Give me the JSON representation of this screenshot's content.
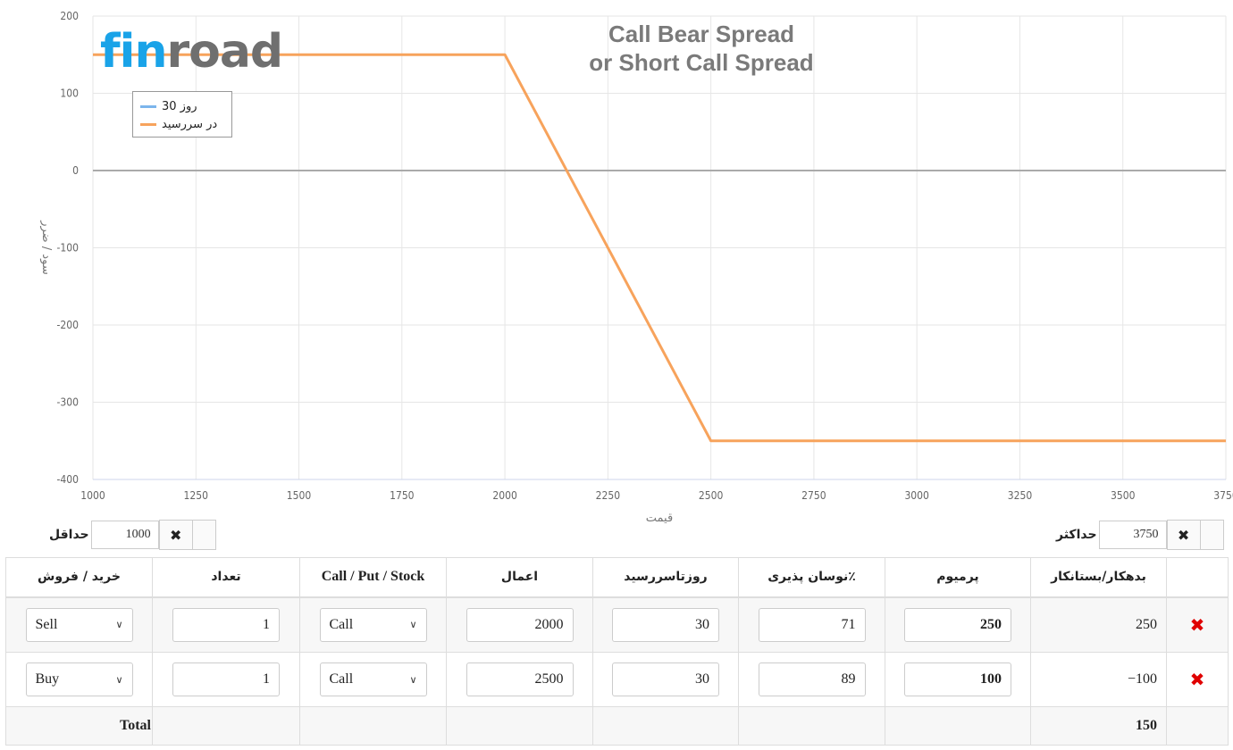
{
  "chart_data": {
    "type": "line",
    "title": "Call Bear Spread",
    "subtitle": "or Short Call Spread",
    "xlabel": "قیمت",
    "ylabel": "سود / ضرر",
    "xlim": [
      1000,
      3750
    ],
    "ylim": [
      -400,
      200
    ],
    "x_ticks": [
      "1000",
      "1250",
      "1500",
      "1750",
      "2000",
      "2250",
      "2500",
      "2750",
      "3000",
      "3250",
      "3500",
      "3750"
    ],
    "y_ticks": [
      "200",
      "100",
      "0",
      "-100",
      "-200",
      "-300",
      "-400"
    ],
    "grid": true,
    "legend_position": "top-left",
    "series": [
      {
        "name": "روز 30",
        "color": "#7cb5ec",
        "x": [],
        "y": []
      },
      {
        "name": "در سررسید",
        "color": "#f7a35c",
        "x": [
          1000,
          2000,
          2500,
          3750
        ],
        "y": [
          150,
          150,
          -350,
          -350
        ]
      }
    ]
  },
  "logo": {
    "part1": "fin",
    "part2": "road"
  },
  "controls": {
    "min_label": "حداقل",
    "min_value": "1000",
    "max_label": "حداکثر",
    "max_value": "3750",
    "clear_icon": "✖"
  },
  "table": {
    "headers": {
      "debit_credit": "بدهکار/بستانکار",
      "premium": "پرمیوم",
      "volatility": "٪نوسان پذیری",
      "days": "روزتاسررسید",
      "strike": "اعمال",
      "type": "Call / Put / Stock",
      "quantity": "تعداد",
      "side": "خرید / فروش"
    },
    "rows": [
      {
        "debit_credit": "250",
        "premium": "250",
        "volatility": "71",
        "days": "30",
        "strike": "2000",
        "type": "Call",
        "quantity": "1",
        "side": "Sell"
      },
      {
        "debit_credit": "−100",
        "premium": "100",
        "volatility": "89",
        "days": "30",
        "strike": "2500",
        "type": "Call",
        "quantity": "1",
        "side": "Buy"
      }
    ],
    "total_label": "Total",
    "total_value": "150",
    "delete_icon": "✖"
  }
}
